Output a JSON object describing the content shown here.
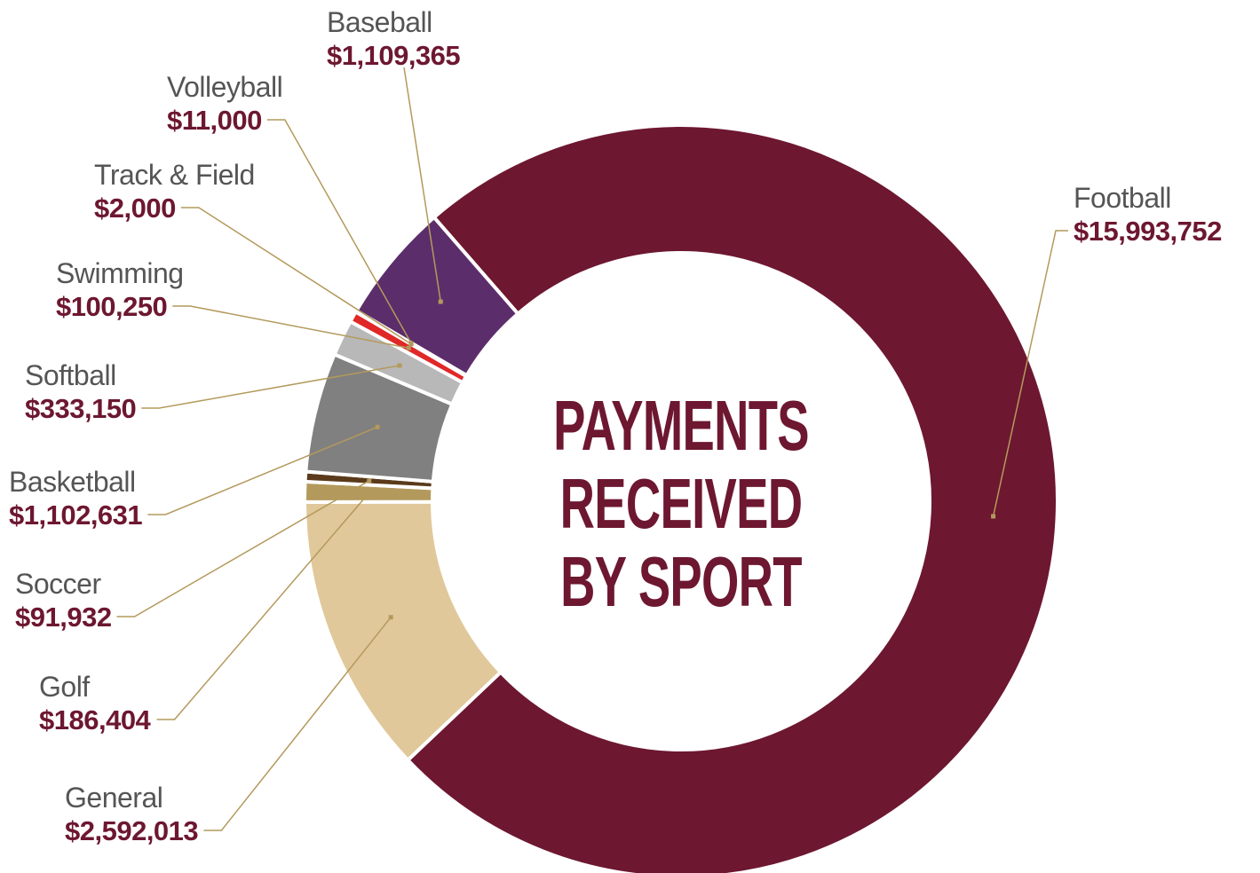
{
  "chart_data": {
    "type": "donut",
    "title": "PAYMENTS RECEIVED BY SPORT",
    "categories": [
      "Football",
      "General",
      "Golf",
      "Soccer",
      "Basketball",
      "Softball",
      "Swimming",
      "Track & Field",
      "Volleyball",
      "Baseball"
    ],
    "values": [
      15993752,
      2592013,
      186404,
      91932,
      1102631,
      333150,
      100250,
      2000,
      11000,
      1109365
    ],
    "value_labels": [
      "$15,993,752",
      "$2,592,013",
      "$186,404",
      "$91,932",
      "$1,102,631",
      "$333,150",
      "$100,250",
      "$2,000",
      "$11,000",
      "$1,109,365"
    ],
    "colors": [
      "#6d1730",
      "#e0c89a",
      "#b39a5c",
      "#5a3a1a",
      "#808080",
      "#b8b8b8",
      "#e02828",
      "#111111",
      "#f0b93a",
      "#5c2d6b"
    ]
  }
}
